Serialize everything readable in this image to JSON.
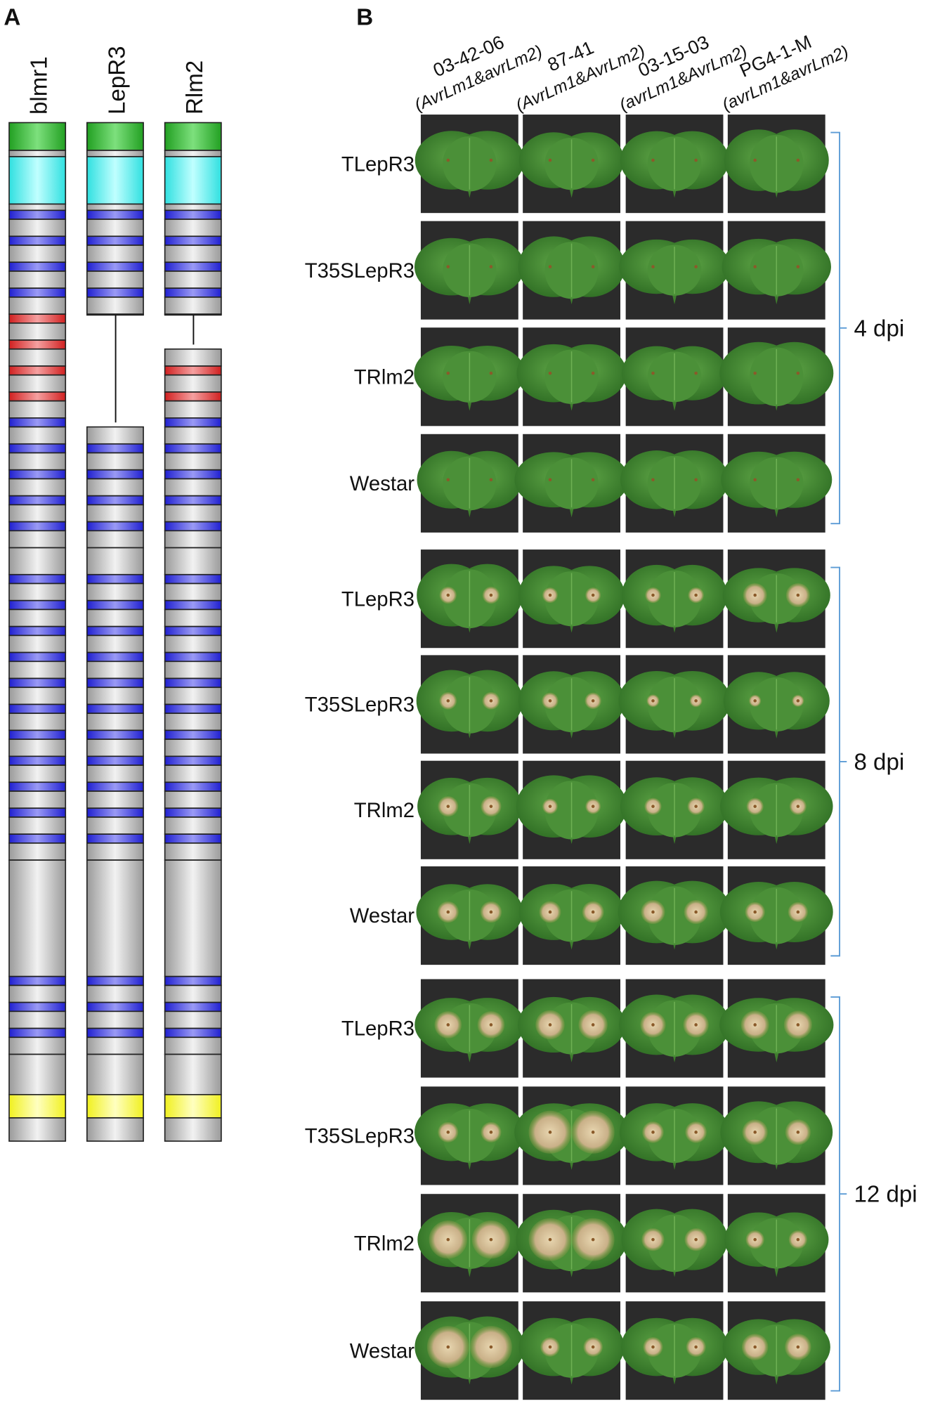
{
  "panel_a": {
    "label": "A",
    "genes": [
      "blmr1",
      "LepR3",
      "Rlm2"
    ]
  },
  "panel_b": {
    "label": "B",
    "columns": [
      {
        "isolate": "03-42-06",
        "genotype": "(AvrLm1&avrLm2)"
      },
      {
        "isolate": "87-41",
        "genotype": "(AvrLm1&AvrLm2)"
      },
      {
        "isolate": "03-15-03",
        "genotype": "(avrLm1&AvrLm2)"
      },
      {
        "isolate": "PG4-1-M",
        "genotype": "(avrLm1&avrLm2)"
      }
    ],
    "groups": [
      {
        "label": "4 dpi",
        "rows": [
          "TLepR3",
          "T35SLepR3",
          "TRlm2",
          "Westar"
        ]
      },
      {
        "label": "8 dpi",
        "rows": [
          "TLepR3",
          "T35SLepR3",
          "TRlm2",
          "Westar"
        ]
      },
      {
        "label": "12 dpi",
        "rows": [
          "TLepR3",
          "T35SLepR3",
          "TRlm2",
          "Westar"
        ]
      }
    ]
  }
}
